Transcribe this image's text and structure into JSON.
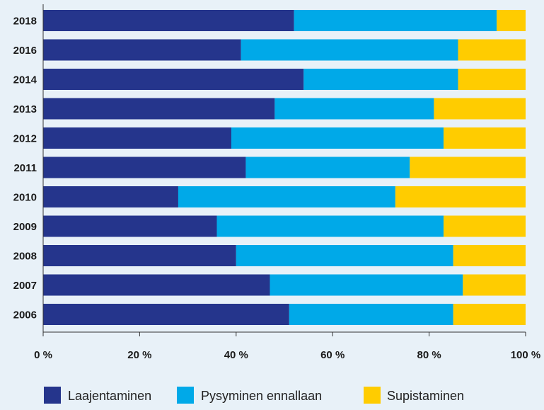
{
  "chart_data": {
    "type": "bar",
    "orientation": "horizontal",
    "stacked": true,
    "categories": [
      "2018",
      "2016",
      "2014",
      "2013",
      "2012",
      "2011",
      "2010",
      "2009",
      "2008",
      "2007",
      "2006"
    ],
    "series": [
      {
        "name": "Laajentaminen",
        "color": "#25358c",
        "values": [
          52,
          41,
          54,
          48,
          39,
          42,
          28,
          36,
          40,
          47,
          51
        ]
      },
      {
        "name": "Pysyminen ennallaan",
        "color": "#00a9e8",
        "values": [
          42,
          45,
          32,
          33,
          44,
          34,
          45,
          47,
          45,
          40,
          34
        ]
      },
      {
        "name": "Supistaminen",
        "color": "#ffcc00",
        "values": [
          6,
          14,
          14,
          19,
          17,
          24,
          27,
          17,
          15,
          13,
          15
        ]
      }
    ],
    "xticks": [
      "0 %",
      "20 %",
      "40 %",
      "60 %",
      "80 %",
      "100 %"
    ],
    "xlim": [
      0,
      100
    ],
    "legend_position": "bottom",
    "grid": false
  }
}
